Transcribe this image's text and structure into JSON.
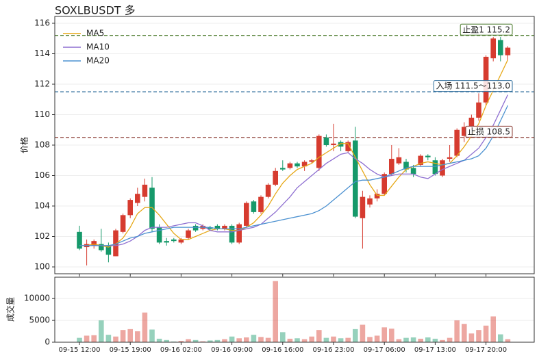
{
  "chart_data": {
    "type": "candlestick",
    "title": "SOXLBUSDT 多",
    "y_label": "价格",
    "volume_label": "成交量",
    "categories": [
      "09-15 12:00",
      null,
      null,
      null,
      null,
      null,
      null,
      "09-15 19:00",
      null,
      null,
      null,
      null,
      null,
      null,
      "09-16 02:00",
      null,
      null,
      null,
      null,
      null,
      null,
      "09-16 09:00",
      null,
      null,
      null,
      null,
      null,
      null,
      "09-16 16:00",
      null,
      null,
      null,
      null,
      null,
      null,
      "09-16 23:00",
      null,
      null,
      null,
      null,
      null,
      null,
      "09-17 06:00",
      null,
      null,
      null,
      null,
      null,
      null,
      "09-17 13:00",
      null,
      null,
      null,
      null,
      null,
      null,
      "09-17 20:00",
      null,
      null,
      null
    ],
    "open": [
      102.3,
      101.3,
      101.4,
      101.5,
      101.4,
      100.7,
      102.3,
      103.4,
      104.2,
      104.6,
      105.2,
      102.6,
      101.7,
      101.8,
      101.6,
      101.9,
      102.7,
      102.5,
      102.6,
      102.7,
      102.5,
      102.7,
      101.6,
      102.7,
      104.3,
      103.6,
      104.6,
      105.4,
      106.5,
      106.5,
      106.8,
      106.6,
      106.9,
      106.5,
      108.5,
      108.0,
      108.2,
      107.6,
      108.3,
      103.2,
      104.1,
      104.5,
      104.8,
      106.1,
      106.8,
      106.9,
      106.5,
      106.7,
      107.3,
      107.0,
      106.0,
      107.1,
      107.3,
      108.6,
      109.2,
      109.8,
      110.8,
      113.7,
      114.9,
      113.9
    ],
    "high": [
      102.7,
      101.8,
      101.8,
      102.5,
      101.6,
      102.5,
      103.5,
      104.5,
      105.2,
      105.8,
      105.9,
      102.8,
      101.9,
      101.9,
      101.9,
      102.5,
      102.8,
      102.8,
      102.7,
      102.8,
      102.8,
      102.8,
      102.9,
      104.3,
      104.4,
      104.7,
      105.5,
      106.5,
      107.0,
      106.9,
      106.9,
      107.0,
      107.1,
      108.7,
      108.7,
      109.4,
      108.3,
      108.3,
      109.2,
      105.0,
      104.7,
      105.1,
      106.2,
      108.0,
      107.8,
      107.1,
      106.7,
      107.4,
      107.4,
      107.2,
      107.1,
      108.0,
      109.1,
      109.5,
      110.0,
      111.4,
      113.9,
      115.1,
      115.1,
      114.5
    ],
    "low": [
      101.1,
      100.1,
      101.2,
      101.0,
      100.3,
      100.7,
      102.2,
      103.2,
      104.0,
      104.3,
      102.3,
      101.5,
      101.4,
      101.6,
      101.5,
      101.8,
      102.3,
      102.4,
      102.4,
      102.4,
      102.4,
      101.5,
      101.5,
      102.6,
      103.5,
      103.5,
      104.5,
      105.3,
      106.3,
      106.4,
      106.5,
      106.3,
      106.8,
      106.3,
      107.9,
      107.6,
      107.6,
      107.5,
      103.2,
      101.2,
      103.9,
      104.3,
      104.7,
      106.0,
      106.7,
      106.2,
      105.9,
      106.6,
      107.0,
      106.0,
      105.9,
      106.9,
      107.2,
      108.2,
      109.0,
      109.6,
      110.6,
      113.5,
      113.5,
      113.6
    ],
    "close": [
      101.2,
      101.5,
      101.7,
      101.1,
      100.8,
      102.4,
      103.4,
      104.4,
      104.8,
      105.4,
      102.5,
      101.6,
      101.6,
      101.7,
      101.8,
      102.4,
      102.4,
      102.7,
      102.5,
      102.5,
      102.7,
      101.6,
      102.8,
      104.2,
      103.6,
      104.6,
      105.4,
      106.3,
      106.4,
      106.8,
      106.6,
      106.9,
      107.0,
      108.6,
      108.0,
      108.1,
      107.9,
      108.2,
      103.3,
      104.6,
      104.5,
      104.8,
      106.1,
      107.1,
      107.2,
      106.4,
      106.1,
      107.3,
      107.2,
      106.1,
      107.0,
      107.2,
      109.0,
      109.2,
      109.8,
      110.8,
      113.8,
      115.0,
      113.9,
      114.4
    ],
    "volume": [
      1000,
      1500,
      1600,
      5000,
      1700,
      1300,
      2800,
      3000,
      2500,
      6800,
      2900,
      800,
      500,
      150,
      300,
      700,
      500,
      200,
      400,
      500,
      700,
      1300,
      900,
      1100,
      1700,
      1200,
      1000,
      14000,
      2300,
      800,
      900,
      700,
      1300,
      2800,
      1000,
      1300,
      900,
      1000,
      3000,
      4000,
      1200,
      1500,
      3400,
      3100,
      700,
      1000,
      1100,
      800,
      1100,
      800,
      500,
      1000,
      5000,
      4200,
      2000,
      2800,
      3800,
      5900,
      1800,
      700
    ],
    "up_color": "#d63b2f",
    "down_color": "#16996a",
    "series": [
      {
        "name": "MA5",
        "color": "#e6a817",
        "values": [
          101.4,
          101.4,
          101.5,
          101.4,
          101.3,
          101.5,
          101.9,
          102.6,
          103.5,
          103.9,
          103.9,
          103.4,
          102.8,
          102.2,
          101.8,
          101.8,
          102.0,
          102.2,
          102.4,
          102.5,
          102.5,
          102.4,
          102.4,
          102.6,
          102.9,
          103.4,
          104.0,
          104.8,
          105.5,
          106.0,
          106.4,
          106.6,
          106.8,
          107.2,
          107.5,
          107.8,
          108.1,
          108.1,
          107.2,
          106.3,
          105.4,
          104.7,
          104.7,
          105.3,
          105.9,
          106.4,
          106.6,
          106.8,
          106.9,
          106.8,
          106.7,
          106.8,
          107.3,
          107.9,
          108.6,
          109.4,
          110.6,
          111.6,
          112.6,
          113.6
        ]
      },
      {
        "name": "MA10",
        "color": "#8e6fd1",
        "values": [
          101.4,
          101.4,
          101.4,
          101.4,
          101.4,
          101.4,
          101.5,
          101.7,
          102.0,
          102.4,
          102.6,
          102.6,
          102.6,
          102.7,
          102.8,
          102.9,
          102.9,
          102.7,
          102.4,
          102.3,
          102.3,
          102.3,
          102.4,
          102.5,
          102.6,
          102.8,
          103.2,
          103.6,
          104.1,
          104.6,
          105.2,
          105.6,
          106.0,
          106.4,
          106.8,
          107.1,
          107.4,
          107.5,
          107.1,
          106.8,
          106.4,
          106.1,
          105.9,
          106.0,
          106.1,
          106.1,
          106.1,
          105.9,
          105.8,
          106.1,
          106.4,
          106.6,
          106.8,
          107.0,
          107.4,
          107.8,
          108.5,
          109.3,
          110.3,
          111.3
        ]
      },
      {
        "name": "MA20",
        "color": "#4a90d0",
        "values": [
          101.4,
          101.4,
          101.4,
          101.4,
          101.4,
          101.5,
          101.7,
          101.9,
          102.0,
          102.2,
          102.3,
          102.4,
          102.5,
          102.6,
          102.6,
          102.6,
          102.6,
          102.6,
          102.6,
          102.5,
          102.5,
          102.5,
          102.5,
          102.6,
          102.7,
          102.8,
          102.9,
          103.0,
          103.1,
          103.2,
          103.3,
          103.4,
          103.5,
          103.7,
          104.0,
          104.4,
          104.8,
          105.2,
          105.6,
          105.7,
          105.7,
          105.8,
          105.9,
          106.1,
          106.3,
          106.5,
          106.6,
          106.6,
          106.6,
          106.6,
          106.7,
          106.8,
          106.9,
          107.0,
          107.1,
          107.3,
          107.8,
          108.6,
          109.6,
          110.6
        ]
      }
    ],
    "levels": [
      {
        "value": 115.2,
        "label": "止盈1 115.2",
        "color": "#4a7a2a"
      },
      {
        "value": 111.5,
        "label": "入场 111.5～113.0",
        "color": "#2a6a9a"
      },
      {
        "value": 108.5,
        "label": "止损 108.5",
        "color": "#8a3a32"
      }
    ],
    "ylim": [
      99.55,
      116.45
    ],
    "yticks": [
      100,
      102,
      104,
      106,
      108,
      110,
      112,
      114,
      116
    ],
    "volume_ylim": [
      0,
      14900
    ],
    "volume_ticks": [
      0,
      5000,
      10000
    ],
    "grid": true,
    "legend": "upper left"
  }
}
